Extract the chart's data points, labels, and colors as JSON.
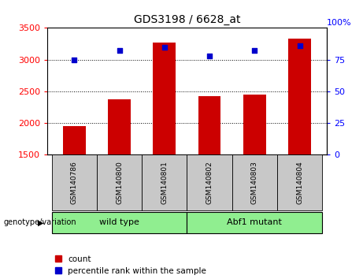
{
  "title": "GDS3198 / 6628_at",
  "samples": [
    "GSM140786",
    "GSM140800",
    "GSM140801",
    "GSM140802",
    "GSM140803",
    "GSM140804"
  ],
  "counts": [
    1950,
    2380,
    3270,
    2420,
    2450,
    3330
  ],
  "percentiles": [
    75,
    82,
    85,
    78,
    82,
    86
  ],
  "ylim_left": [
    1500,
    3500
  ],
  "ylim_right": [
    0,
    100
  ],
  "yticks_left": [
    1500,
    2000,
    2500,
    3000,
    3500
  ],
  "yticks_right": [
    0,
    25,
    50,
    75,
    100
  ],
  "bar_color": "#cc0000",
  "dot_color": "#0000cc",
  "group_label": "genotype/variation",
  "legend_count": "count",
  "legend_percentile": "percentile rank within the sample",
  "bg_color": "#ffffff",
  "tick_area_bg": "#c8c8c8",
  "green_color": "#90ee90",
  "title_fontsize": 10,
  "bar_width": 0.5,
  "group_spans": [
    [
      0,
      2,
      "wild type"
    ],
    [
      3,
      5,
      "Abf1 mutant"
    ]
  ]
}
